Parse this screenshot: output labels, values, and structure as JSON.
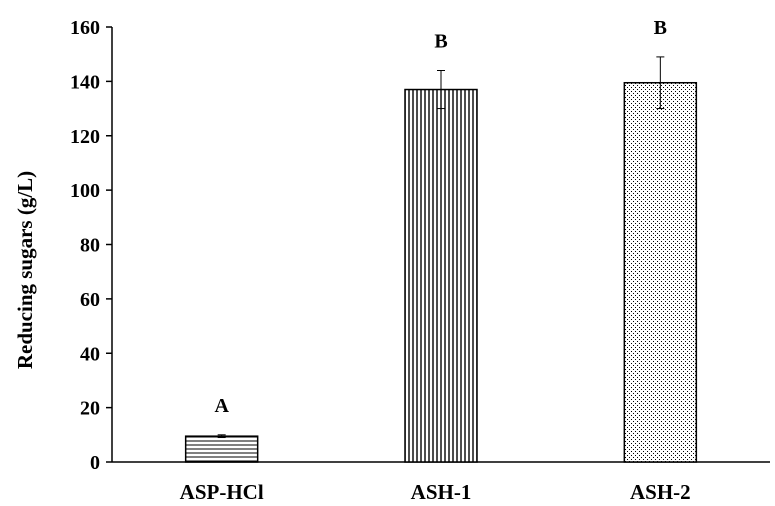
{
  "chart_data": {
    "type": "bar",
    "title": "",
    "xlabel": "",
    "ylabel": "Reducing sugars (g/L)",
    "ylim": [
      0,
      160
    ],
    "y_ticks": [
      0,
      20,
      40,
      60,
      80,
      100,
      120,
      140,
      160
    ],
    "grid": false,
    "categories": [
      "ASP-HCl",
      "ASH-1",
      "ASH-2"
    ],
    "values": [
      9.5,
      137,
      139.5
    ],
    "error": [
      0.5,
      7,
      9.5
    ],
    "significance": [
      "A",
      "B",
      "B"
    ],
    "patterns": [
      "horizontal-lines",
      "vertical-lines",
      "dots"
    ]
  }
}
